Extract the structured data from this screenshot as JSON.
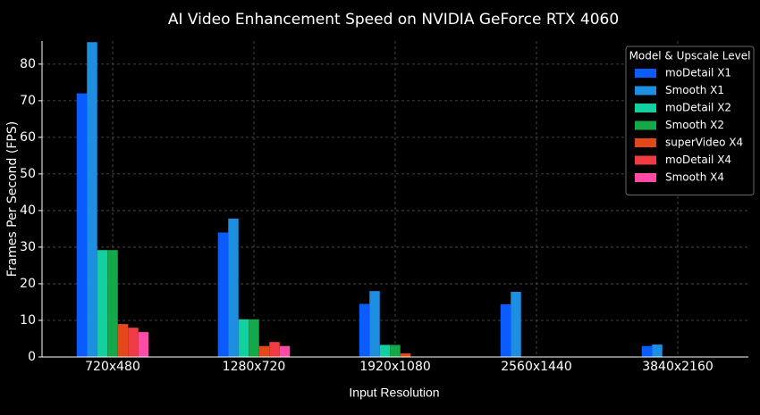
{
  "chart_data": {
    "type": "bar",
    "title": "AI Video Enhancement Speed on NVIDIA GeForce RTX 4060",
    "x_label": "Input Resolution",
    "y_label": "Frames Per Second (FPS)",
    "legend_title": "Model & Upscale Level",
    "legend_position": "upper right",
    "grid": true,
    "categories": [
      "720x480",
      "1280x720",
      "1920x1080",
      "2560x1440",
      "3840x2160"
    ],
    "series": [
      {
        "name": "moDetail X1",
        "color": "#0a5cff",
        "values": [
          72,
          34,
          14.5,
          14.4,
          3
        ]
      },
      {
        "name": "Smooth X1",
        "color": "#1e8fe0",
        "values": [
          86,
          37.8,
          18,
          17.8,
          3.4
        ]
      },
      {
        "name": "moDetail X2",
        "color": "#12d0a0",
        "values": [
          29.2,
          10.3,
          3.3,
          0,
          0
        ]
      },
      {
        "name": "Smooth X2",
        "color": "#14a84a",
        "values": [
          29.2,
          10.3,
          3.3,
          0,
          0
        ]
      },
      {
        "name": "superVideo X4",
        "color": "#e2481a",
        "values": [
          9,
          3,
          1,
          0,
          0
        ]
      },
      {
        "name": "moDetail X4",
        "color": "#f03a44",
        "values": [
          8,
          4.1,
          0,
          0,
          0
        ]
      },
      {
        "name": "Smooth X4",
        "color": "#ff4aa6",
        "values": [
          6.8,
          3,
          0,
          0,
          0
        ]
      }
    ],
    "ylim": [
      0,
      86.3
    ],
    "yticks": [
      0,
      10,
      20,
      30,
      40,
      50,
      60,
      70,
      80
    ]
  }
}
